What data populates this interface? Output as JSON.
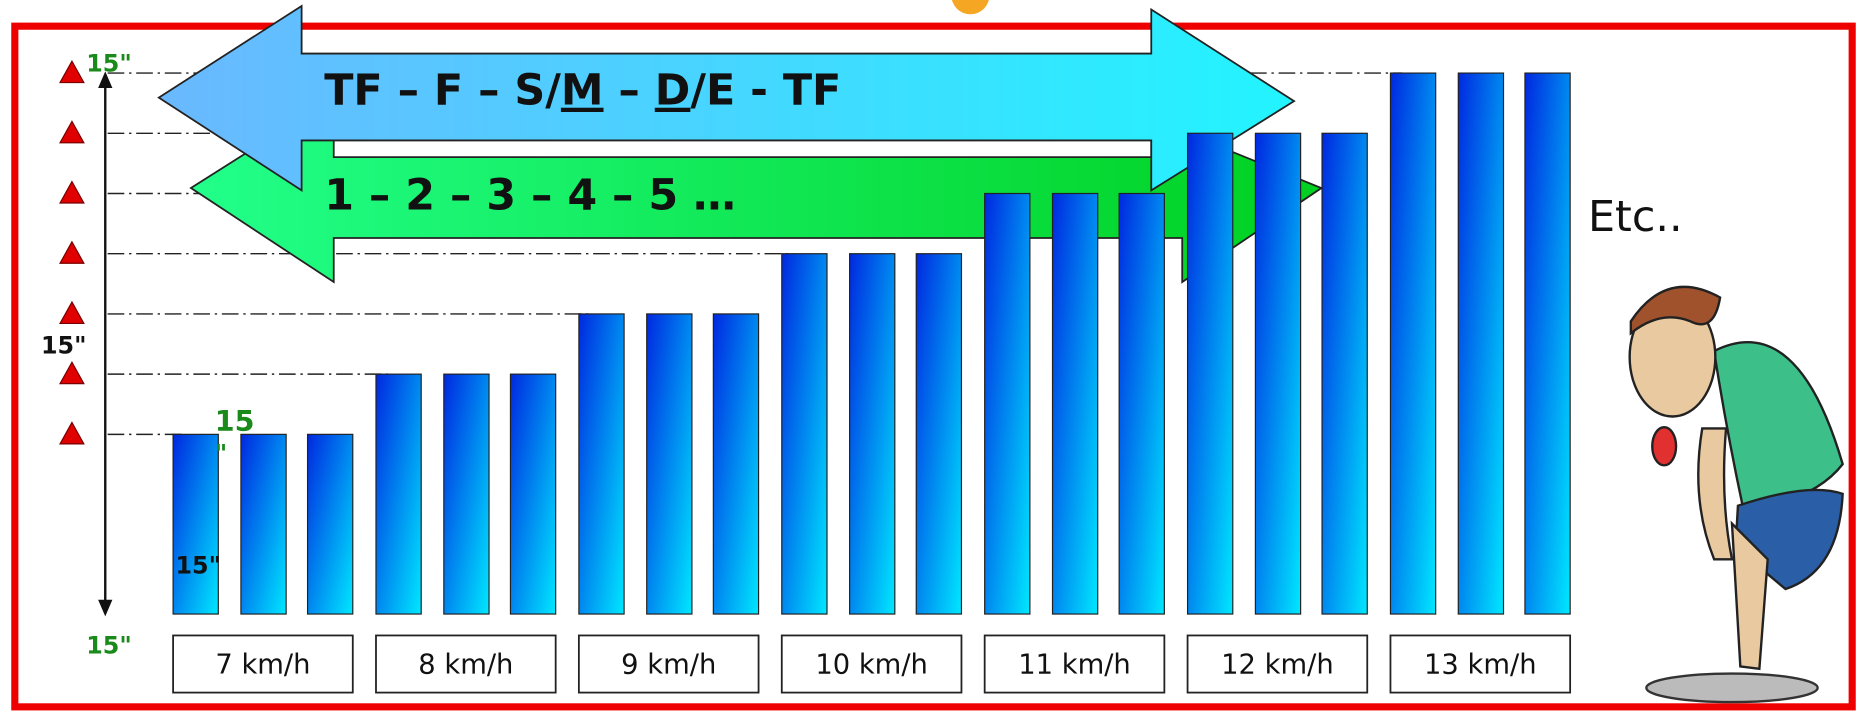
{
  "arrows": {
    "top": {
      "parts": [
        "TF – F – S/",
        "M",
        " – ",
        "D",
        "/E - TF"
      ]
    },
    "bottom": {
      "label": "1 – 2 – 3 – 4 – 5 …"
    }
  },
  "timing_labels": [
    "15\"",
    "15\"",
    "15",
    "\"",
    "15\"",
    "15\""
  ],
  "speeds": [
    "7 km/h",
    "8 km/h",
    "9 km/h",
    "10 km/h",
    "11 km/h",
    "12 km/h",
    "13 km/h"
  ],
  "note": "Etc.."
}
